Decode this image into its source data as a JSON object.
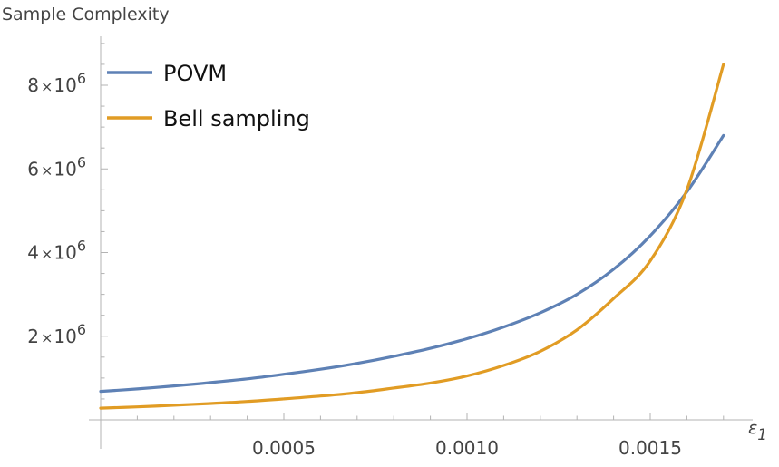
{
  "chart_data": {
    "type": "line",
    "title": "",
    "ylabel": "Sample Complexity",
    "xlabel": "ε",
    "xlabel_sub": "1",
    "xlim": [
      0,
      0.0017
    ],
    "ylim": [
      0,
      9000000
    ],
    "x_ticks": [
      {
        "value": 0.0005,
        "label": "0.0005"
      },
      {
        "value": 0.001,
        "label": "0.0010"
      },
      {
        "value": 0.0015,
        "label": "0.0015"
      }
    ],
    "y_ticks": [
      {
        "value": 2000000,
        "mantissa": "2",
        "times": "×",
        "base": "10",
        "exp": "6"
      },
      {
        "value": 4000000,
        "mantissa": "4",
        "times": "×",
        "base": "10",
        "exp": "6"
      },
      {
        "value": 6000000,
        "mantissa": "6",
        "times": "×",
        "base": "10",
        "exp": "6"
      },
      {
        "value": 8000000,
        "mantissa": "8",
        "times": "×",
        "base": "10",
        "exp": "6"
      }
    ],
    "grid": false,
    "legend_position": "top-left",
    "series": [
      {
        "name": "POVM",
        "color": "#5e81b5",
        "x": [
          0,
          0.0001,
          0.0002,
          0.0003,
          0.0004,
          0.0005,
          0.0006,
          0.0007,
          0.0008,
          0.0009,
          0.001,
          0.0011,
          0.0012,
          0.0013,
          0.0014,
          0.0015,
          0.0016,
          0.0017
        ],
        "y": [
          680000,
          740000,
          810000,
          890000,
          980000,
          1090000,
          1210000,
          1350000,
          1520000,
          1710000,
          1940000,
          2220000,
          2560000,
          3000000,
          3600000,
          4400000,
          5450000,
          6800000
        ]
      },
      {
        "name": "Bell sampling",
        "color": "#e19c24",
        "x": [
          0,
          0.0001,
          0.0002,
          0.0003,
          0.0004,
          0.0005,
          0.0006,
          0.0007,
          0.0008,
          0.0009,
          0.001,
          0.0011,
          0.0012,
          0.0013,
          0.0014,
          0.0015,
          0.0016,
          0.0017
        ],
        "y": [
          280000,
          310000,
          350000,
          390000,
          440000,
          500000,
          570000,
          650000,
          760000,
          880000,
          1050000,
          1300000,
          1640000,
          2150000,
          2900000,
          3800000,
          5500000,
          8500000
        ]
      }
    ]
  }
}
